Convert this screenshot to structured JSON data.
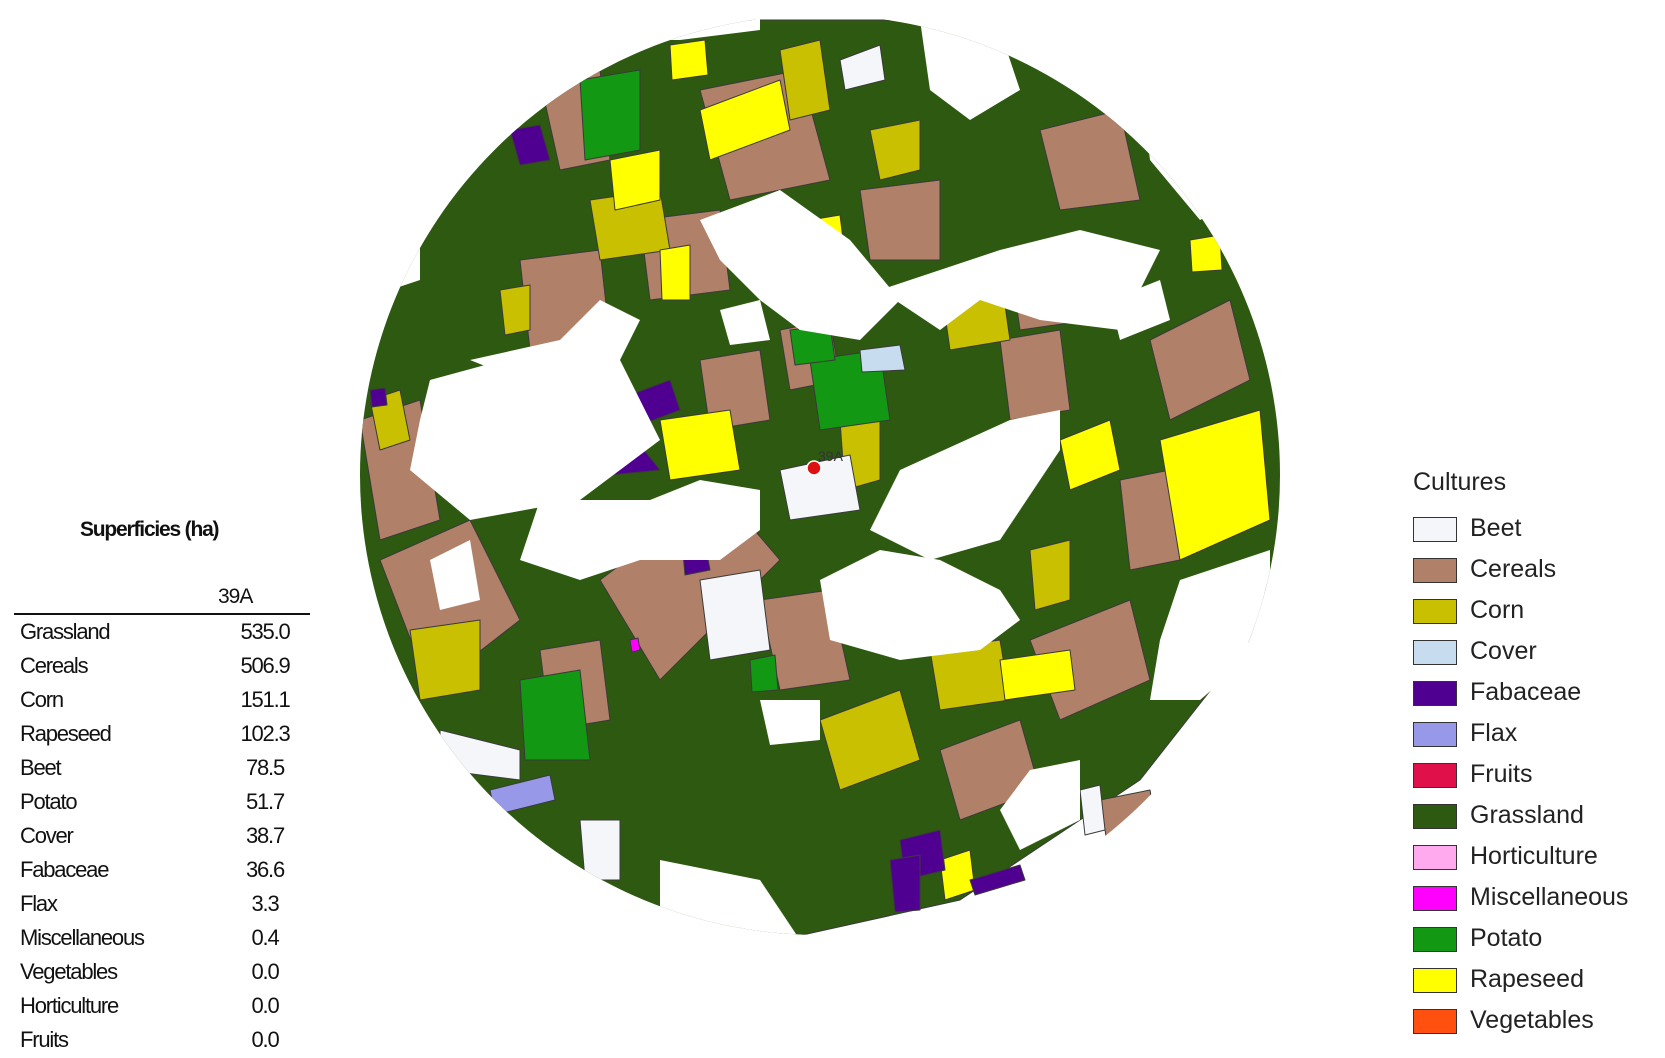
{
  "map": {
    "site_label": "39A",
    "site_marker_color": "#dd1111",
    "crop_colors": {
      "grassland": "#2d5a10",
      "cereals": "#b08068",
      "corn": "#c8c000",
      "rapeseed": "#ffff00",
      "beet": "#f4f6f9",
      "potato": "#129812",
      "fabaceae": "#500090",
      "flax": "#9898e8",
      "cover": "#c8dcf0",
      "miscellaneous": "#ff00ff"
    }
  },
  "table": {
    "title": "Superficies (ha)",
    "column": "39A",
    "rows": [
      {
        "label": "Grassland",
        "value": "535.0"
      },
      {
        "label": "Cereals",
        "value": "506.9"
      },
      {
        "label": "Corn",
        "value": "151.1"
      },
      {
        "label": "Rapeseed",
        "value": "102.3"
      },
      {
        "label": "Beet",
        "value": "78.5"
      },
      {
        "label": "Potato",
        "value": "51.7"
      },
      {
        "label": "Cover",
        "value": "38.7"
      },
      {
        "label": "Fabaceae",
        "value": "36.6"
      },
      {
        "label": "Flax",
        "value": "3.3"
      },
      {
        "label": "Miscellaneous",
        "value": "0.4"
      },
      {
        "label": "Vegetables",
        "value": "0.0"
      },
      {
        "label": "Horticulture",
        "value": "0.0"
      },
      {
        "label": "Fruits",
        "value": "0.0"
      }
    ]
  },
  "legend": {
    "title": "Cultures",
    "items": [
      {
        "label": "Beet",
        "color": "#f4f6f9"
      },
      {
        "label": "Cereals",
        "color": "#b08068"
      },
      {
        "label": "Corn",
        "color": "#c8c000"
      },
      {
        "label": "Cover",
        "color": "#c8dcf0"
      },
      {
        "label": "Fabaceae",
        "color": "#500090"
      },
      {
        "label": "Flax",
        "color": "#9898e8"
      },
      {
        "label": "Fruits",
        "color": "#e0104a"
      },
      {
        "label": "Grassland",
        "color": "#2d5a10"
      },
      {
        "label": "Horticulture",
        "color": "#ffaaee"
      },
      {
        "label": "Miscellaneous",
        "color": "#ff00ff"
      },
      {
        "label": "Potato",
        "color": "#129812"
      },
      {
        "label": "Rapeseed",
        "color": "#ffff00"
      },
      {
        "label": "Vegetables",
        "color": "#ff5010"
      }
    ]
  }
}
